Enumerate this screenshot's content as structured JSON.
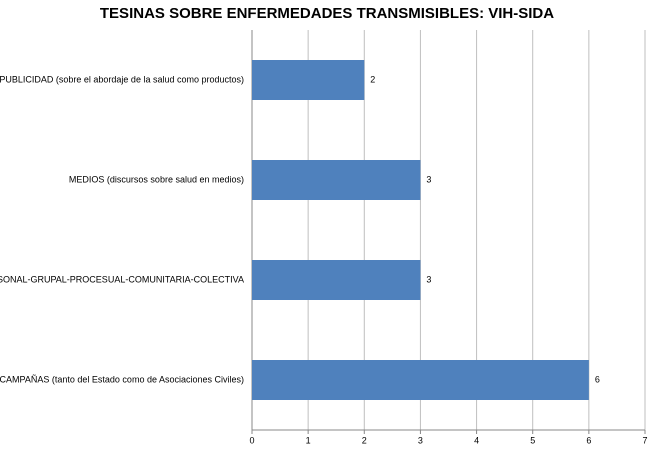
{
  "chart_data": {
    "type": "bar",
    "orientation": "horizontal",
    "title": "TESINAS SOBRE ENFERMEDADES TRANSMISIBLES: VIH-SIDA",
    "categories": [
      "PUBLICIDAD (sobre el abordaje de la salud como productos)",
      "MEDIOS (discursos sobre salud en medios)",
      "INTERPERSONAL-GRUPAL-PROCESUAL-COMUNITARIA-COLECTIVA",
      "CAMPAÑAS (tanto del Estado como de Asociaciones Civiles)"
    ],
    "values": [
      2,
      3,
      3,
      6
    ],
    "color": "#4f81bd",
    "xlim": [
      0,
      7
    ],
    "xticks": [
      0,
      1,
      2,
      3,
      4,
      5,
      6,
      7
    ],
    "grid": true
  }
}
